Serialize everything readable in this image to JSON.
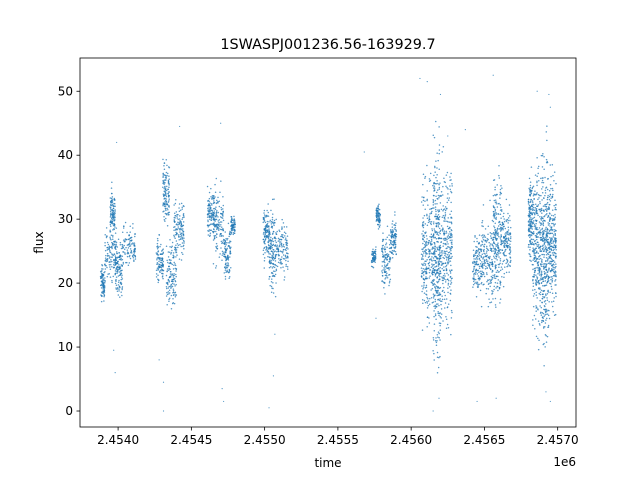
{
  "chart_data": {
    "type": "scatter",
    "title": "1SWASPJ001236.56-163929.7",
    "xlabel": "time",
    "ylabel": "flux",
    "x_offset_label": "1e6",
    "xlim": [
      2453740,
      2457125
    ],
    "ylim": [
      -2.5,
      55.2
    ],
    "x_ticks": [
      2454000,
      2454500,
      2455000,
      2455500,
      2456000,
      2456500,
      2457000
    ],
    "x_tick_labels": [
      "2.4540",
      "2.4545",
      "2.4550",
      "2.4555",
      "2.4560",
      "2.4565",
      "2.4570"
    ],
    "y_ticks": [
      0,
      10,
      20,
      30,
      40,
      50
    ],
    "y_tick_labels": [
      "0",
      "10",
      "20",
      "30",
      "40",
      "50"
    ],
    "grid": false,
    "legend": "none",
    "marker_color": "#1f77b4",
    "clusters": [
      {
        "x_start": 2453880,
        "x_end": 2453910,
        "y_low": 16.5,
        "y_high": 23.5
      },
      {
        "x_start": 2453910,
        "x_end": 2453990,
        "y_low": 19,
        "y_high": 30
      },
      {
        "x_start": 2453945,
        "x_end": 2453980,
        "y_low": 26,
        "y_high": 36
      },
      {
        "x_start": 2453980,
        "x_end": 2454030,
        "y_low": 16.5,
        "y_high": 28
      },
      {
        "x_start": 2454030,
        "x_end": 2454120,
        "y_low": 21,
        "y_high": 30
      },
      {
        "x_start": 2454260,
        "x_end": 2454310,
        "y_low": 19,
        "y_high": 28
      },
      {
        "x_start": 2454305,
        "x_end": 2454350,
        "y_low": 28,
        "y_high": 40
      },
      {
        "x_start": 2454330,
        "x_end": 2454400,
        "y_low": 15,
        "y_high": 28
      },
      {
        "x_start": 2454380,
        "x_end": 2454450,
        "y_low": 22,
        "y_high": 35
      },
      {
        "x_start": 2454610,
        "x_end": 2454660,
        "y_low": 26,
        "y_high": 36
      },
      {
        "x_start": 2454650,
        "x_end": 2454720,
        "y_low": 22,
        "y_high": 36
      },
      {
        "x_start": 2454720,
        "x_end": 2454770,
        "y_low": 20,
        "y_high": 30
      },
      {
        "x_start": 2454770,
        "x_end": 2454800,
        "y_low": 27,
        "y_high": 31
      },
      {
        "x_start": 2454990,
        "x_end": 2455030,
        "y_low": 22,
        "y_high": 33
      },
      {
        "x_start": 2455030,
        "x_end": 2455080,
        "y_low": 17,
        "y_high": 33
      },
      {
        "x_start": 2455080,
        "x_end": 2455160,
        "y_low": 20,
        "y_high": 31
      },
      {
        "x_start": 2455730,
        "x_end": 2455760,
        "y_low": 22,
        "y_high": 26
      },
      {
        "x_start": 2455760,
        "x_end": 2455790,
        "y_low": 28,
        "y_high": 33
      },
      {
        "x_start": 2455800,
        "x_end": 2455860,
        "y_low": 18,
        "y_high": 29
      },
      {
        "x_start": 2455860,
        "x_end": 2455900,
        "y_low": 23,
        "y_high": 31
      },
      {
        "x_start": 2456070,
        "x_end": 2456150,
        "y_low": 10,
        "y_high": 40
      },
      {
        "x_start": 2456150,
        "x_end": 2456200,
        "y_low": 4,
        "y_high": 45
      },
      {
        "x_start": 2456200,
        "x_end": 2456280,
        "y_low": 10,
        "y_high": 42
      },
      {
        "x_start": 2456420,
        "x_end": 2456480,
        "y_low": 17,
        "y_high": 29
      },
      {
        "x_start": 2456480,
        "x_end": 2456560,
        "y_low": 15,
        "y_high": 33
      },
      {
        "x_start": 2456560,
        "x_end": 2456620,
        "y_low": 15,
        "y_high": 40
      },
      {
        "x_start": 2456620,
        "x_end": 2456680,
        "y_low": 19,
        "y_high": 33
      },
      {
        "x_start": 2456800,
        "x_end": 2456830,
        "y_low": 22,
        "y_high": 38
      },
      {
        "x_start": 2456830,
        "x_end": 2456890,
        "y_low": 8,
        "y_high": 43
      },
      {
        "x_start": 2456890,
        "x_end": 2456940,
        "y_low": 6,
        "y_high": 44
      },
      {
        "x_start": 2456940,
        "x_end": 2456990,
        "y_low": 12,
        "y_high": 40
      }
    ],
    "outliers": [
      {
        "x": 2454310,
        "y": 0.0
      },
      {
        "x": 2454310,
        "y": 4.5
      },
      {
        "x": 2454280,
        "y": 8.0
      },
      {
        "x": 2454720,
        "y": 1.5
      },
      {
        "x": 2454710,
        "y": 3.5
      },
      {
        "x": 2455060,
        "y": 5.5
      },
      {
        "x": 2455030,
        "y": 0.5
      },
      {
        "x": 2456150,
        "y": 0.0
      },
      {
        "x": 2456190,
        "y": 2.0
      },
      {
        "x": 2456060,
        "y": 52.0
      },
      {
        "x": 2456110,
        "y": 51.5
      },
      {
        "x": 2456200,
        "y": 49.5
      },
      {
        "x": 2456560,
        "y": 52.5
      },
      {
        "x": 2456450,
        "y": 1.5
      },
      {
        "x": 2456580,
        "y": 2.0
      },
      {
        "x": 2456860,
        "y": 50.0
      },
      {
        "x": 2456940,
        "y": 49.5
      },
      {
        "x": 2456950,
        "y": 47.5
      },
      {
        "x": 2456950,
        "y": 1.5
      },
      {
        "x": 2456920,
        "y": 3.0
      },
      {
        "x": 2453990,
        "y": 42.0
      },
      {
        "x": 2454420,
        "y": 44.5
      },
      {
        "x": 2454700,
        "y": 45.0
      },
      {
        "x": 2455680,
        "y": 40.5
      },
      {
        "x": 2456250,
        "y": 43.0
      },
      {
        "x": 2456370,
        "y": 44.0
      },
      {
        "x": 2453980,
        "y": 6.0
      },
      {
        "x": 2453970,
        "y": 9.5
      },
      {
        "x": 2455070,
        "y": 12.0
      },
      {
        "x": 2455760,
        "y": 14.5
      }
    ]
  }
}
